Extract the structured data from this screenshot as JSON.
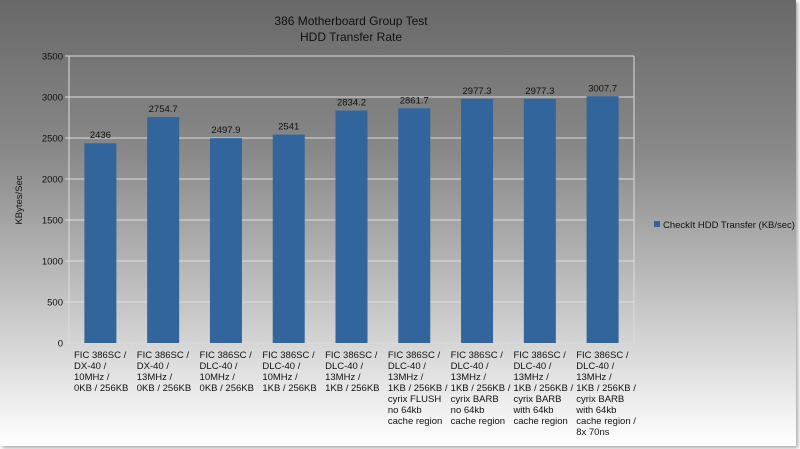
{
  "chart_data": {
    "type": "bar",
    "title": "386 Motherboard Group Test",
    "subtitle": "HDD Transfer Rate",
    "xlabel": "",
    "ylabel": "KBytes/Sec",
    "ylim": [
      0,
      3500
    ],
    "yticks": [
      0,
      500,
      1000,
      1500,
      2000,
      2500,
      3000,
      3500
    ],
    "grid": true,
    "legend_position": "right",
    "categories": [
      [
        "FIC 386SC /",
        "DX-40 /",
        "10MHz /",
        "0KB / 256KB"
      ],
      [
        "FIC 386SC /",
        "DX-40 /",
        "13MHz /",
        "0KB / 256KB"
      ],
      [
        "FIC 386SC /",
        "DLC-40 /",
        "10MHz /",
        "0KB / 256KB"
      ],
      [
        "FIC 386SC /",
        "DLC-40 /",
        "10MHz /",
        "1KB / 256KB"
      ],
      [
        "FIC 386SC /",
        "DLC-40 /",
        "13MHz /",
        "1KB / 256KB"
      ],
      [
        "FIC 386SC /",
        "DLC-40 /",
        "13MHz /",
        "1KB / 256KB /",
        "cyrix FLUSH",
        "no 64kb",
        "cache region"
      ],
      [
        "FIC 386SC /",
        "DLC-40 /",
        "13MHz /",
        "1KB / 256KB /",
        "cyrix BARB",
        "no 64kb",
        "cache region"
      ],
      [
        "FIC 386SC /",
        "DLC-40 /",
        "13MHz /",
        "1KB / 256KB /",
        "cyrix BARB",
        "with 64kb",
        "cache region"
      ],
      [
        "FIC 386SC /",
        "DLC-40 /",
        "13MHz /",
        "1KB / 256KB /",
        "cyrix BARB",
        "with 64kb",
        "cache region /",
        "8x 70ns"
      ]
    ],
    "series": [
      {
        "name": "CheckIt HDD Transfer (KB/sec)",
        "color": "#31659c",
        "values": [
          2436,
          2754.7,
          2497.9,
          2541,
          2834.2,
          2861.7,
          2977.3,
          2977.3,
          3007.7
        ],
        "labels": [
          "2436",
          "2754.7",
          "2497.9",
          "2541",
          "2834.2",
          "2861.7",
          "2977.3",
          "2977.3",
          "3007.7"
        ]
      }
    ]
  }
}
